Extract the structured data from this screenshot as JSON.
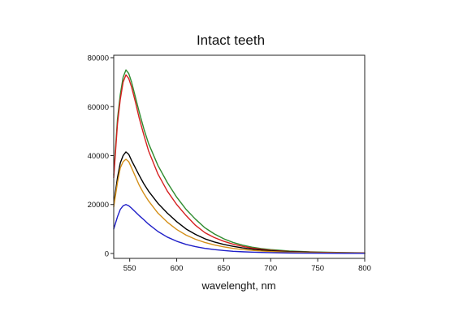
{
  "chart_data": {
    "type": "line",
    "title": "Intact teeth",
    "xlabel": "wavelenght, nm",
    "ylabel": "",
    "xlim": [
      533,
      800
    ],
    "ylim": [
      -2000,
      81000
    ],
    "xticks": [
      550,
      600,
      650,
      700,
      750,
      800
    ],
    "yticks": [
      0,
      20000,
      40000,
      60000,
      80000
    ],
    "xtick_labels": [
      "550",
      "600",
      "650",
      "700",
      "750",
      "800"
    ],
    "ytick_labels": [
      "0",
      "20000",
      "40000",
      "60000",
      "80000"
    ],
    "grid": false,
    "legend": "none",
    "series": [
      {
        "color": "#2e8b2e",
        "x": [
          533,
          537,
          540,
          543,
          546,
          549,
          552,
          556,
          560,
          565,
          570,
          580,
          590,
          600,
          610,
          620,
          630,
          640,
          650,
          660,
          670,
          680,
          690,
          700,
          720,
          740,
          760,
          780,
          800
        ],
        "y": [
          32000,
          55000,
          65000,
          72000,
          75000,
          73500,
          70000,
          64000,
          58000,
          51000,
          45000,
          36000,
          29000,
          23000,
          18000,
          14000,
          10500,
          8000,
          6000,
          4500,
          3400,
          2600,
          2000,
          1600,
          1000,
          700,
          500,
          350,
          250
        ]
      },
      {
        "color": "#d62020",
        "x": [
          533,
          537,
          540,
          543,
          546,
          549,
          552,
          556,
          560,
          565,
          570,
          580,
          590,
          600,
          610,
          620,
          630,
          640,
          650,
          660,
          670,
          680,
          690,
          700,
          720,
          740,
          760,
          780,
          800
        ],
        "y": [
          31000,
          53000,
          63000,
          70000,
          73000,
          71500,
          68000,
          62000,
          55500,
          48500,
          42000,
          32500,
          25500,
          20000,
          15500,
          11500,
          8500,
          6500,
          5000,
          3800,
          2900,
          2200,
          1700,
          1300,
          800,
          550,
          400,
          300,
          200
        ]
      },
      {
        "color": "#000000",
        "x": [
          533,
          537,
          540,
          543,
          546,
          549,
          552,
          556,
          560,
          565,
          570,
          580,
          590,
          600,
          610,
          620,
          630,
          640,
          650,
          660,
          670,
          680,
          690,
          700,
          720,
          740,
          760,
          780,
          800
        ],
        "y": [
          20000,
          31000,
          37000,
          40000,
          41500,
          40500,
          38000,
          35000,
          32000,
          28500,
          25500,
          20500,
          16500,
          13000,
          10000,
          7800,
          6000,
          4700,
          3700,
          2900,
          2300,
          1800,
          1400,
          1100,
          700,
          450,
          300,
          220,
          150
        ]
      },
      {
        "color": "#d4901a",
        "x": [
          533,
          537,
          540,
          543,
          546,
          549,
          552,
          556,
          560,
          565,
          570,
          580,
          590,
          600,
          610,
          620,
          630,
          640,
          650,
          660,
          670,
          680,
          690,
          700,
          720,
          740,
          760,
          780,
          800
        ],
        "y": [
          19000,
          29000,
          35000,
          37500,
          38500,
          37500,
          35000,
          31500,
          28000,
          24500,
          21500,
          16500,
          12800,
          9800,
          7500,
          5800,
          4500,
          3500,
          2700,
          2100,
          1600,
          1300,
          1000,
          800,
          500,
          350,
          250,
          180,
          120
        ]
      },
      {
        "color": "#1f1fc8",
        "x": [
          533,
          537,
          540,
          543,
          546,
          549,
          552,
          556,
          560,
          565,
          570,
          580,
          590,
          600,
          610,
          620,
          630,
          640,
          650,
          660,
          670,
          680,
          690,
          700,
          720,
          740,
          760,
          780,
          800
        ],
        "y": [
          10000,
          15000,
          18000,
          19500,
          20000,
          19500,
          18500,
          17000,
          15500,
          13800,
          12000,
          9000,
          6700,
          5000,
          3700,
          2800,
          2100,
          1600,
          1200,
          900,
          700,
          550,
          420,
          330,
          200,
          130,
          90,
          60,
          40
        ]
      }
    ]
  }
}
